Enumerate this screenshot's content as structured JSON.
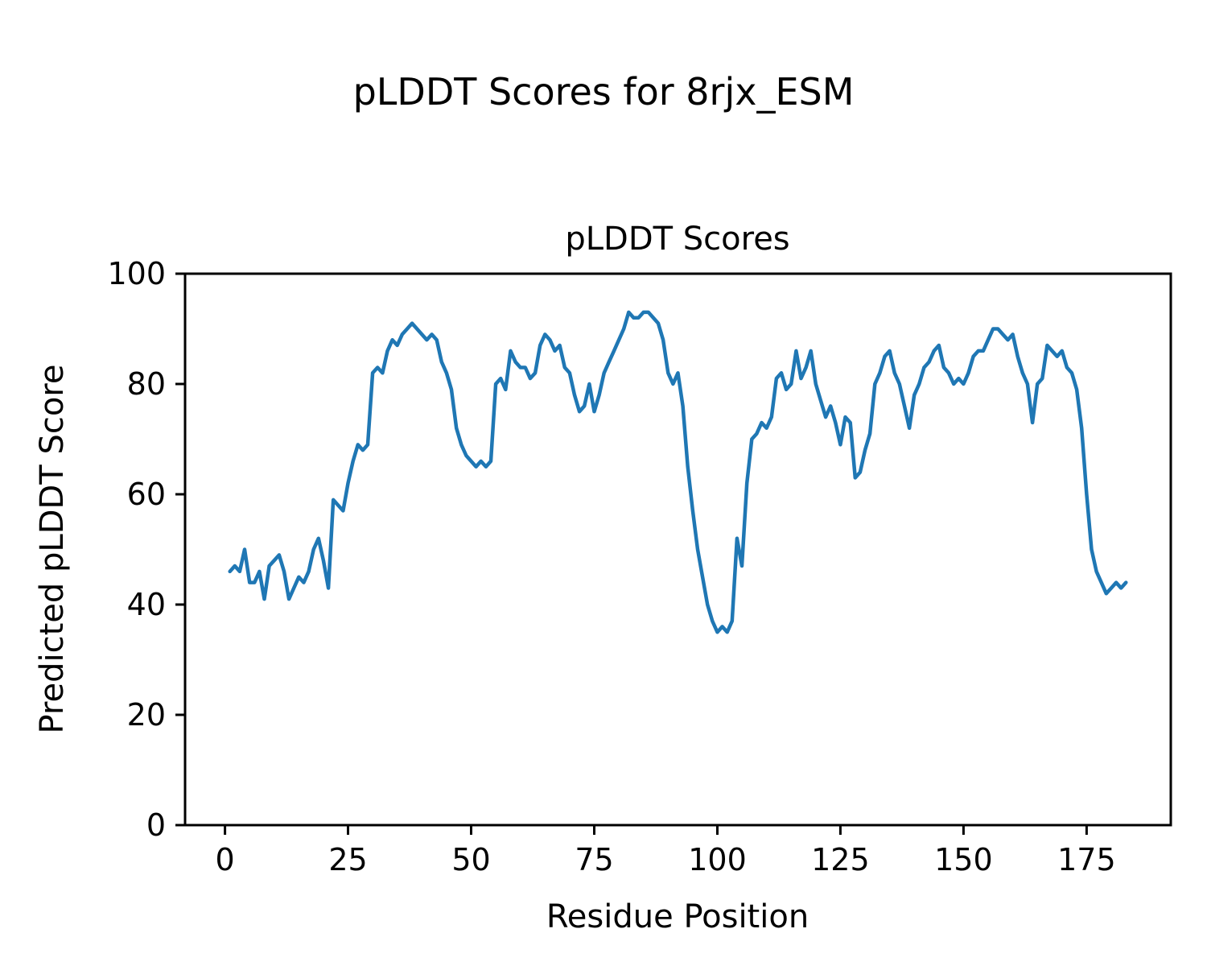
{
  "figure": {
    "suptitle": "pLDDT Scores for 8rjx_ESM",
    "background": "#ffffff"
  },
  "chart_data": {
    "type": "line",
    "title": "pLDDT Scores",
    "xlabel": "Residue Position",
    "ylabel": "Predicted pLDDT Score",
    "xlim": [
      -8.1,
      192.1
    ],
    "ylim": [
      0,
      100
    ],
    "x_ticks": [
      0,
      25,
      50,
      75,
      100,
      125,
      150,
      175
    ],
    "y_ticks": [
      0,
      20,
      40,
      60,
      80,
      100
    ],
    "grid": false,
    "legend": false,
    "series": [
      {
        "name": "pLDDT",
        "color": "#1f77b4",
        "x_start": 1,
        "x_step": 1,
        "n_points": 183,
        "values": [
          46,
          47,
          46,
          50,
          44,
          44,
          46,
          41,
          47,
          48,
          49,
          46,
          41,
          43,
          45,
          44,
          46,
          50,
          52,
          48,
          43,
          59,
          58,
          57,
          62,
          66,
          69,
          68,
          69,
          82,
          83,
          82,
          86,
          88,
          87,
          89,
          90,
          91,
          90,
          89,
          88,
          89,
          88,
          84,
          82,
          79,
          72,
          69,
          67,
          66,
          65,
          66,
          65,
          66,
          80,
          81,
          79,
          86,
          84,
          83,
          83,
          81,
          82,
          87,
          89,
          88,
          86,
          87,
          83,
          82,
          78,
          75,
          76,
          80,
          75,
          78,
          82,
          84,
          86,
          88,
          90,
          93,
          92,
          92,
          93,
          93,
          92,
          91,
          88,
          82,
          80,
          82,
          76,
          65,
          57,
          50,
          45,
          40,
          37,
          35,
          36,
          35,
          37,
          52,
          47,
          62,
          70,
          71,
          73,
          72,
          74,
          81,
          82,
          79,
          80,
          86,
          81,
          83,
          86,
          80,
          77,
          74,
          76,
          73,
          69,
          74,
          73,
          63,
          64,
          68,
          71,
          80,
          82,
          85,
          86,
          82,
          80,
          76,
          72,
          78,
          80,
          83,
          84,
          86,
          87,
          83,
          82,
          80,
          81,
          80,
          82,
          85,
          86,
          86,
          88,
          90,
          90,
          89,
          88,
          89,
          85,
          82,
          80,
          73,
          80,
          81,
          87,
          86,
          85,
          86,
          83,
          82,
          79,
          72,
          60,
          50,
          46,
          44,
          42,
          43,
          44,
          43,
          44
        ]
      }
    ]
  }
}
